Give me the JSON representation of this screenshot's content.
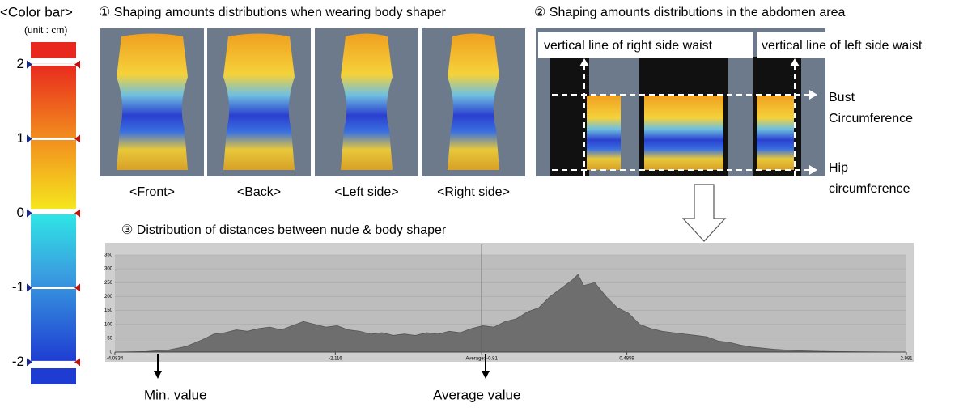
{
  "color_bar": {
    "title": "<Color bar>",
    "unit": "(unit : cm)",
    "ticks": [
      2,
      1,
      0,
      -1,
      -2
    ],
    "lim": [
      -2.3,
      2.3
    ]
  },
  "panel1": {
    "title": "① Shaping amounts distributions when wearing body shaper",
    "views": [
      "<Front>",
      "<Back>",
      "<Left side>",
      "<Right side>"
    ]
  },
  "panel2": {
    "title": "② Shaping amounts distributions in the abdomen area",
    "right_waist": "vertical line of right side waist",
    "left_waist": "vertical line of left side waist",
    "bust": [
      "Bust",
      "Circumference"
    ],
    "hip": [
      "Hip",
      "circumference"
    ]
  },
  "chart_data": {
    "type": "area",
    "title": "③ Distribution of distances between nude & body shaper",
    "color": "#6e6e6e",
    "x": [
      -4.0834,
      -3.8,
      -3.6,
      -3.45,
      -3.3,
      -3.2,
      -3.1,
      -3.0,
      -2.9,
      -2.8,
      -2.7,
      -2.6,
      -2.5,
      -2.4,
      -2.3,
      -2.2,
      -2.1,
      -2.0,
      -1.9,
      -1.8,
      -1.7,
      -1.6,
      -1.5,
      -1.4,
      -1.3,
      -1.2,
      -1.1,
      -1.0,
      -0.9,
      -0.8,
      -0.7,
      -0.6,
      -0.5,
      -0.4,
      -0.3,
      -0.2,
      -0.1,
      0.0,
      0.05,
      0.1,
      0.2,
      0.3,
      0.4,
      0.5,
      0.6,
      0.7,
      0.8,
      0.9,
      1.0,
      1.1,
      1.2,
      1.3,
      1.4,
      1.5,
      1.6,
      1.8,
      2.0,
      2.3,
      2.6,
      2.981
    ],
    "values": [
      0,
      2,
      8,
      20,
      45,
      65,
      70,
      80,
      75,
      85,
      90,
      80,
      95,
      110,
      100,
      90,
      95,
      80,
      75,
      65,
      70,
      60,
      65,
      60,
      70,
      65,
      75,
      70,
      85,
      95,
      90,
      110,
      120,
      145,
      160,
      200,
      230,
      260,
      280,
      240,
      250,
      200,
      160,
      140,
      100,
      85,
      75,
      70,
      65,
      60,
      55,
      40,
      35,
      25,
      18,
      10,
      5,
      2,
      1,
      0
    ],
    "xlim": [
      -4.0834,
      2.981
    ],
    "ylim": [
      0,
      350
    ],
    "yticks": [
      0,
      50,
      100,
      150,
      200,
      250,
      300,
      350
    ],
    "xticks": [
      -4.0834,
      -2.116,
      {
        "value": -0.81,
        "label": "Average: -0.81"
      },
      0.4859,
      2.981
    ],
    "annotations": [
      {
        "text": "Min. value"
      },
      {
        "text": "Average value"
      }
    ]
  }
}
